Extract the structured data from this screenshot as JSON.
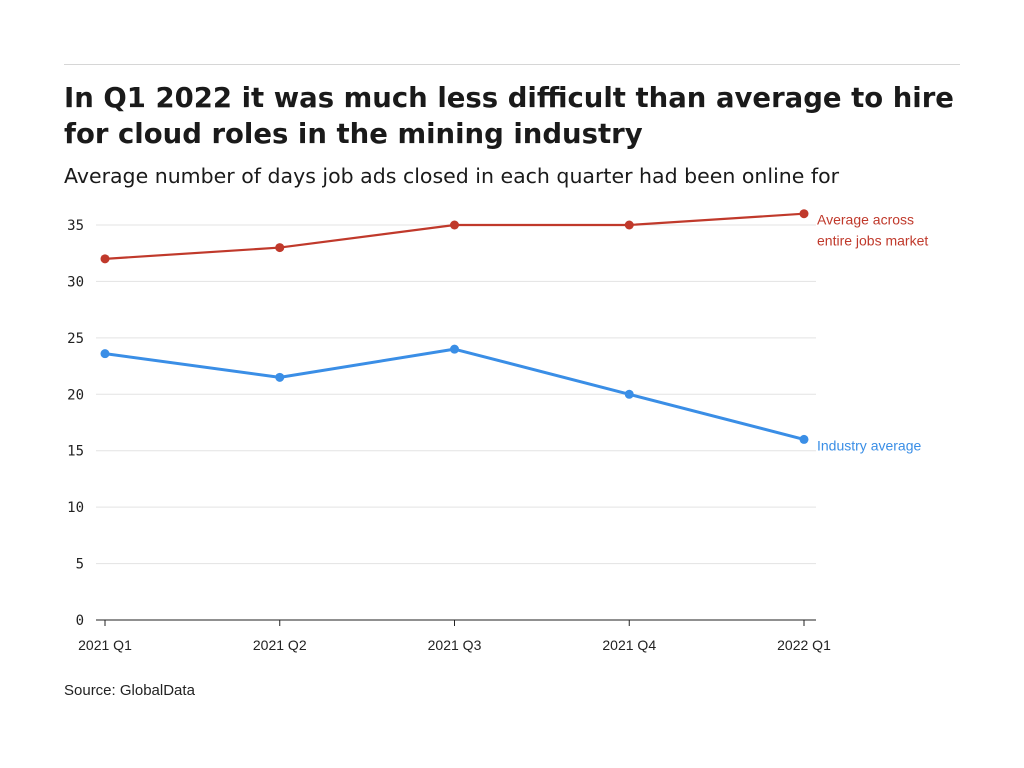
{
  "title": "In Q1 2022 it was much less difficult than average to hire for cloud roles in the mining industry",
  "subtitle": "Average number of days job ads closed in each quarter had been online for",
  "source": "Source: GlobalData",
  "chart_data": {
    "type": "line",
    "categories": [
      "2021 Q1",
      "2021 Q2",
      "2021 Q3",
      "2021 Q4",
      "2022 Q1"
    ],
    "y_ticks": [
      0,
      5,
      10,
      15,
      20,
      25,
      30,
      35
    ],
    "ylim": [
      0,
      36
    ],
    "grid": true,
    "series": [
      {
        "key": "market",
        "label_lines": [
          "Average across",
          "entire jobs market"
        ],
        "values": [
          32,
          33,
          35,
          35,
          36
        ],
        "color": "#c0392b"
      },
      {
        "key": "industry",
        "label_lines": [
          "Industry average"
        ],
        "values": [
          23.6,
          21.5,
          24,
          20,
          16
        ],
        "color": "#3a8ee6"
      }
    ]
  }
}
